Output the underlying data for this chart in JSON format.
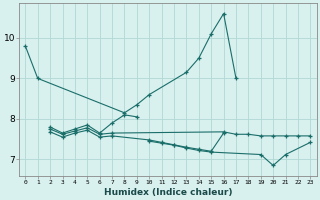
{
  "xlabel": "Humidex (Indice chaleur)",
  "bg_color": "#d8f0ee",
  "grid_color": "#b0d8d4",
  "line_color": "#1a6e6a",
  "x_values": [
    0,
    1,
    2,
    3,
    4,
    5,
    6,
    7,
    8,
    9,
    10,
    11,
    12,
    13,
    14,
    15,
    16,
    17,
    18,
    19,
    20,
    21,
    22,
    23
  ],
  "series": [
    [
      9.8,
      9.0,
      null,
      null,
      null,
      null,
      null,
      null,
      8.15,
      8.35,
      8.6,
      null,
      null,
      9.15,
      9.5,
      10.1,
      10.6,
      9.0,
      null,
      null,
      null,
      null,
      null,
      null
    ],
    [
      null,
      null,
      7.8,
      7.65,
      7.75,
      7.85,
      7.65,
      7.9,
      8.1,
      8.05,
      null,
      null,
      null,
      null,
      null,
      null,
      null,
      null,
      null,
      null,
      null,
      null,
      null,
      null
    ],
    [
      null,
      null,
      7.75,
      7.62,
      7.7,
      7.78,
      7.62,
      7.65,
      null,
      null,
      null,
      null,
      null,
      null,
      null,
      null,
      7.68,
      7.62,
      7.62,
      7.58,
      7.58,
      7.58,
      7.58,
      7.58
    ],
    [
      null,
      null,
      7.68,
      7.55,
      7.65,
      7.72,
      7.55,
      7.58,
      null,
      null,
      7.48,
      7.42,
      7.36,
      7.3,
      7.25,
      7.2,
      7.65,
      null,
      null,
      null,
      null,
      null,
      null,
      null
    ],
    [
      null,
      null,
      null,
      null,
      null,
      null,
      null,
      null,
      null,
      null,
      7.45,
      7.4,
      7.35,
      7.28,
      7.22,
      7.18,
      null,
      null,
      null,
      7.12,
      6.85,
      7.12,
      null,
      7.42
    ]
  ],
  "ylim": [
    6.6,
    10.85
  ],
  "yticks": [
    7,
    8,
    9,
    10
  ],
  "xticks": [
    0,
    1,
    2,
    3,
    4,
    5,
    6,
    7,
    8,
    9,
    10,
    11,
    12,
    13,
    14,
    15,
    16,
    17,
    18,
    19,
    20,
    21,
    22,
    23
  ]
}
